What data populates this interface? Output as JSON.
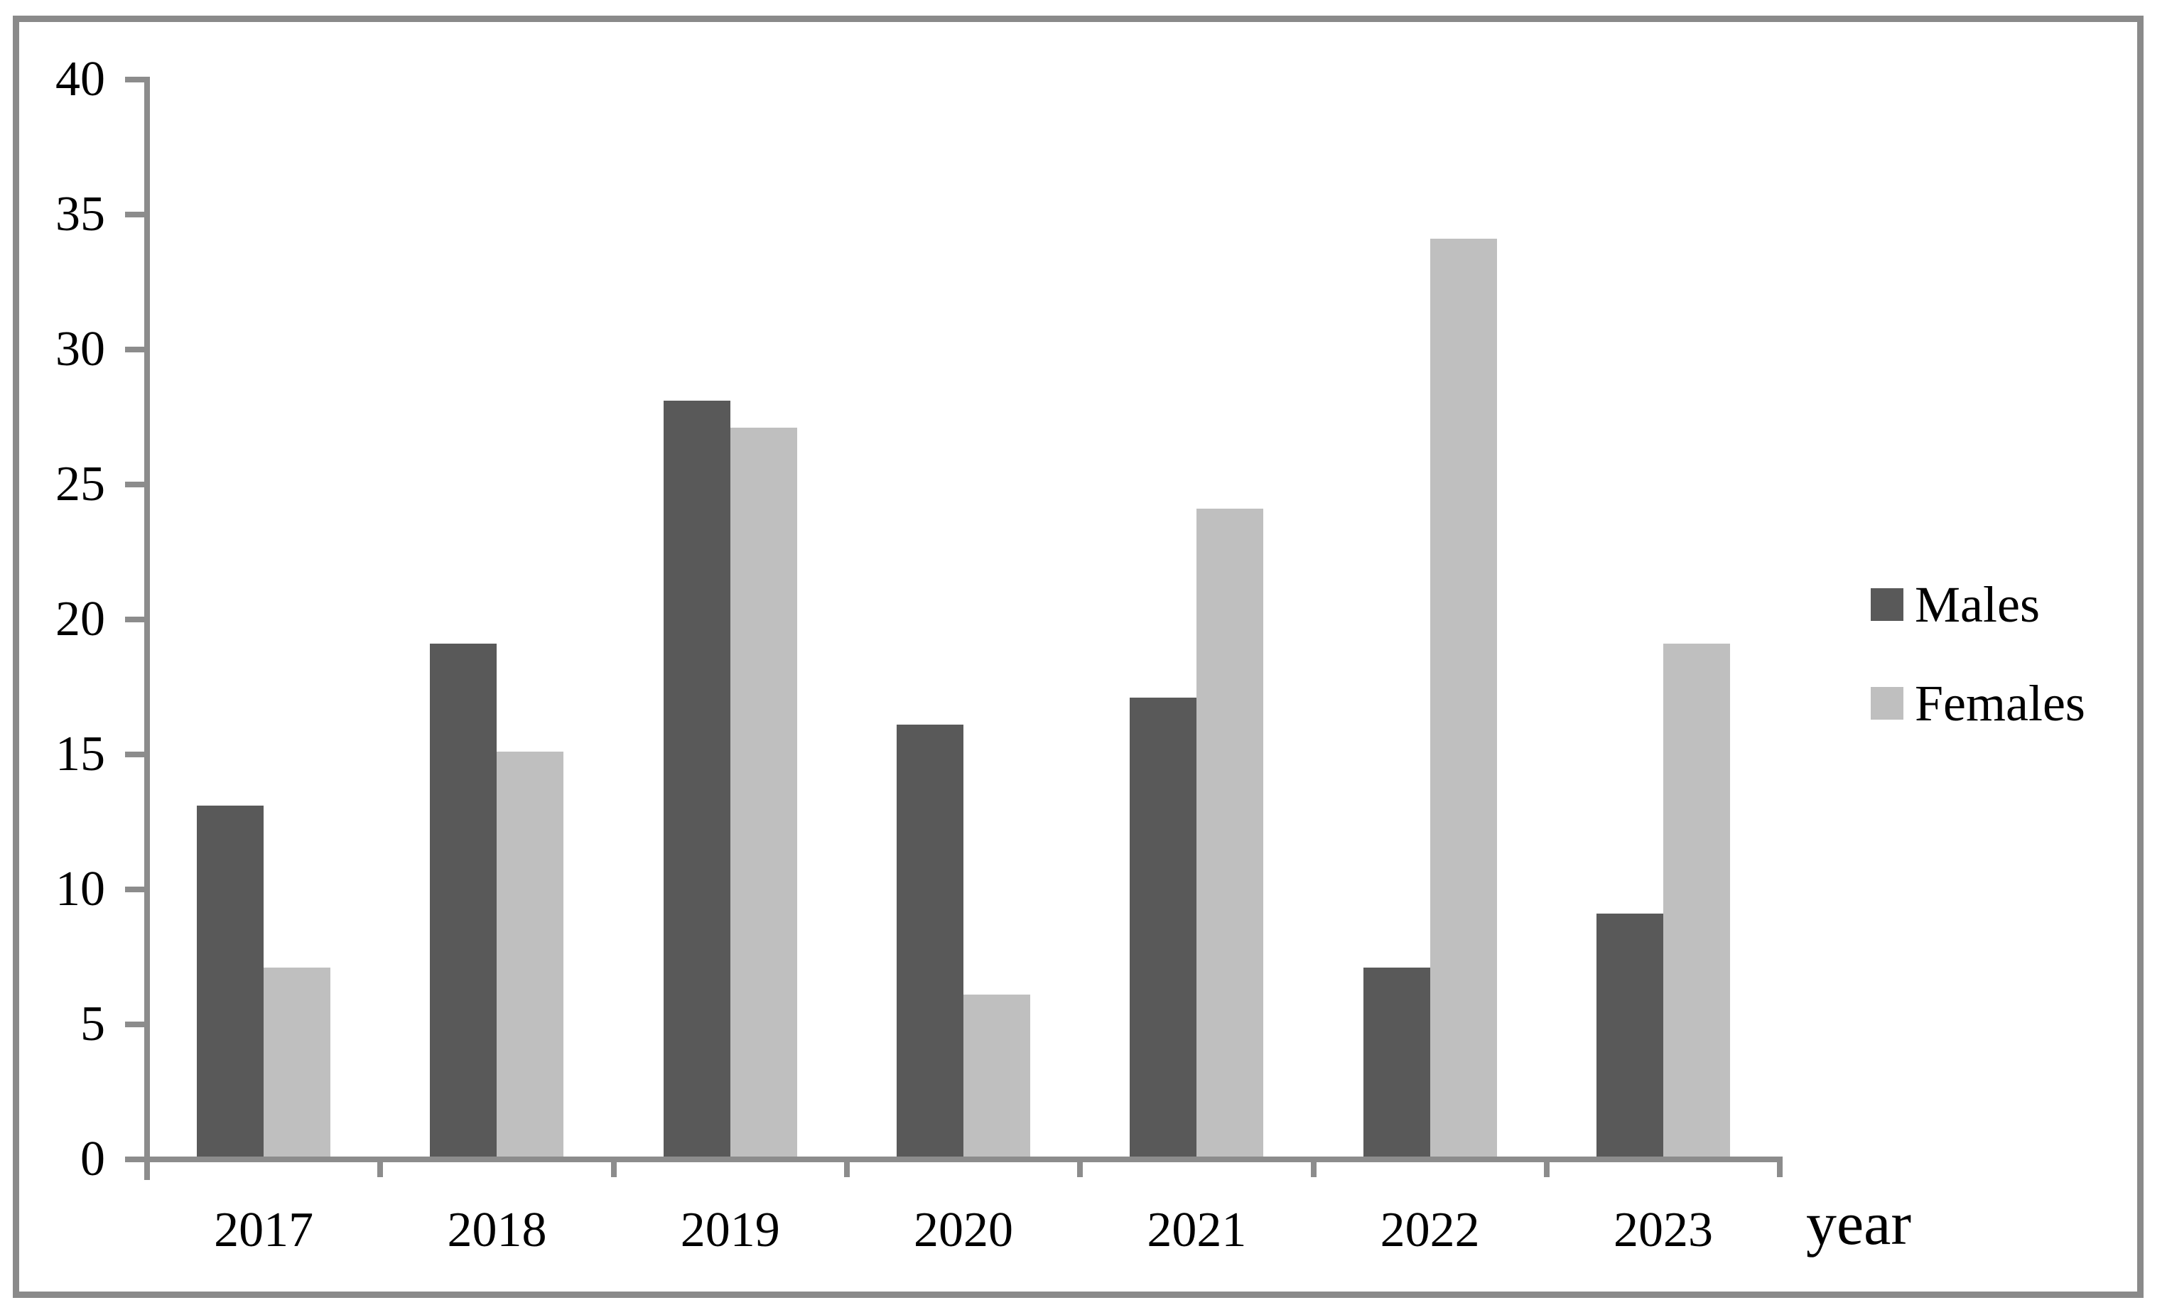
{
  "figure": {
    "background": "#ffffff",
    "frame_color": "#8a8a8a",
    "axis_color": "#8c8c8c",
    "text_color": "#000000"
  },
  "chart_data": {
    "type": "bar",
    "title": "",
    "categories": [
      "2017",
      "2018",
      "2019",
      "2020",
      "2021",
      "2022",
      "2023"
    ],
    "series": [
      {
        "name": "Males",
        "color": "#595959",
        "values": [
          13,
          19,
          28,
          16,
          17,
          7,
          9
        ]
      },
      {
        "name": "Females",
        "color": "#bfbfbf",
        "values": [
          7,
          15,
          27,
          6,
          24,
          34,
          19
        ]
      }
    ],
    "xlabel": "year",
    "ylabel": "",
    "ylim": [
      0,
      40
    ],
    "yticks": [
      0,
      5,
      10,
      15,
      20,
      25,
      30,
      35,
      40
    ],
    "grid": false,
    "legend_position": "middle-right",
    "legend": [
      "Males",
      "Females"
    ]
  }
}
